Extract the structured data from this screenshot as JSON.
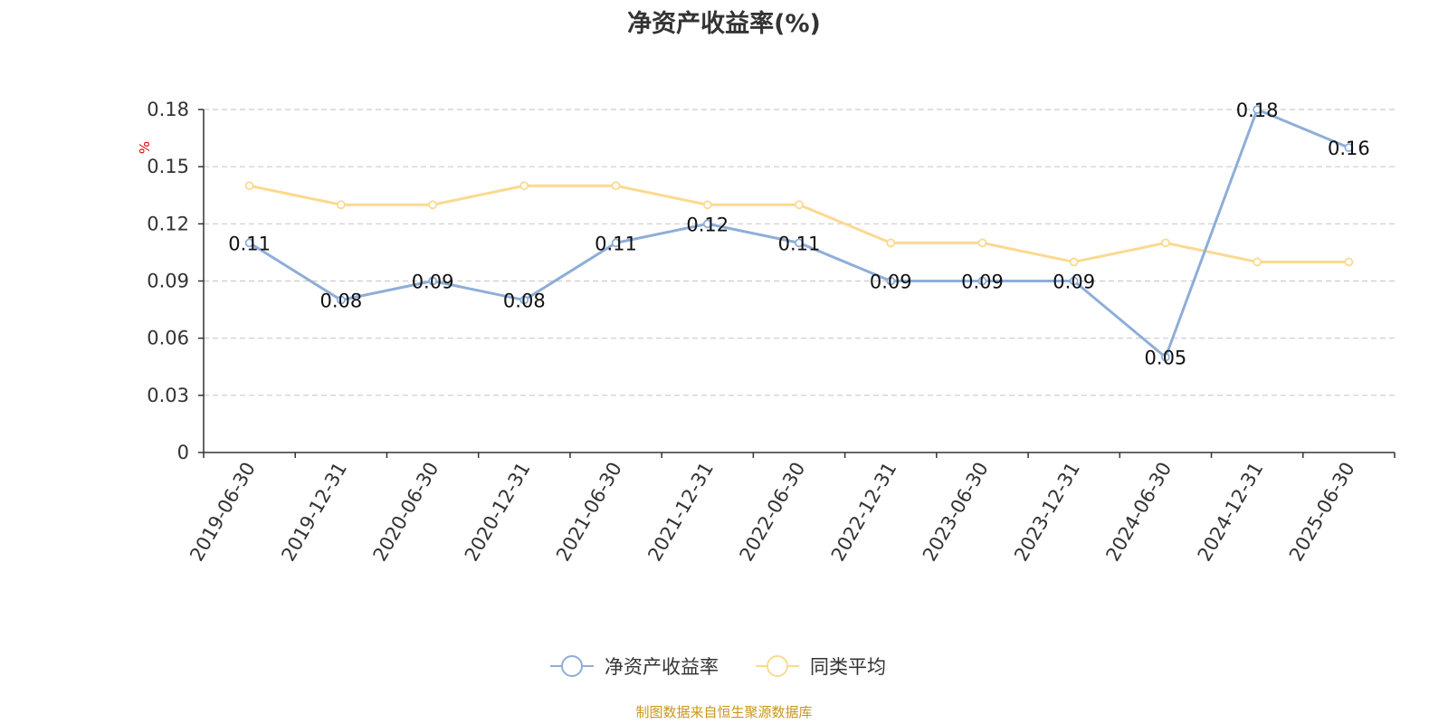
{
  "chart_data": {
    "type": "line",
    "title": "净资产收益率(%)",
    "ylabel": "%",
    "ylim": [
      0,
      0.18
    ],
    "yticks": [
      "0",
      "0.03",
      "0.06",
      "0.09",
      "0.12",
      "0.15",
      "0.18"
    ],
    "grid": true,
    "legend_position": "bottom",
    "categories": [
      "2019-06-30",
      "2019-12-31",
      "2020-06-30",
      "2020-12-31",
      "2021-06-30",
      "2021-12-31",
      "2022-06-30",
      "2022-12-31",
      "2023-06-30",
      "2023-12-31",
      "2024-06-30",
      "2024-12-31",
      "2025-06-30"
    ],
    "series": [
      {
        "name": "净资产收益率",
        "color": "#8eaed8",
        "values": [
          0.11,
          0.08,
          0.09,
          0.08,
          0.11,
          0.12,
          0.11,
          0.09,
          0.09,
          0.09,
          0.05,
          0.18,
          0.16
        ],
        "data_labels": [
          "0.11",
          "0.08",
          "0.09",
          "0.08",
          "0.11",
          "0.12",
          "0.11",
          "0.09",
          "0.09",
          "0.09",
          "0.05",
          "0.18",
          "0.16"
        ]
      },
      {
        "name": "同类平均",
        "color": "#fcd990",
        "values": [
          0.14,
          0.13,
          0.13,
          0.14,
          0.14,
          0.13,
          0.13,
          0.11,
          0.11,
          0.1,
          0.11,
          0.1,
          0.1
        ]
      }
    ],
    "source": "制图数据来自恒生聚源数据库"
  }
}
